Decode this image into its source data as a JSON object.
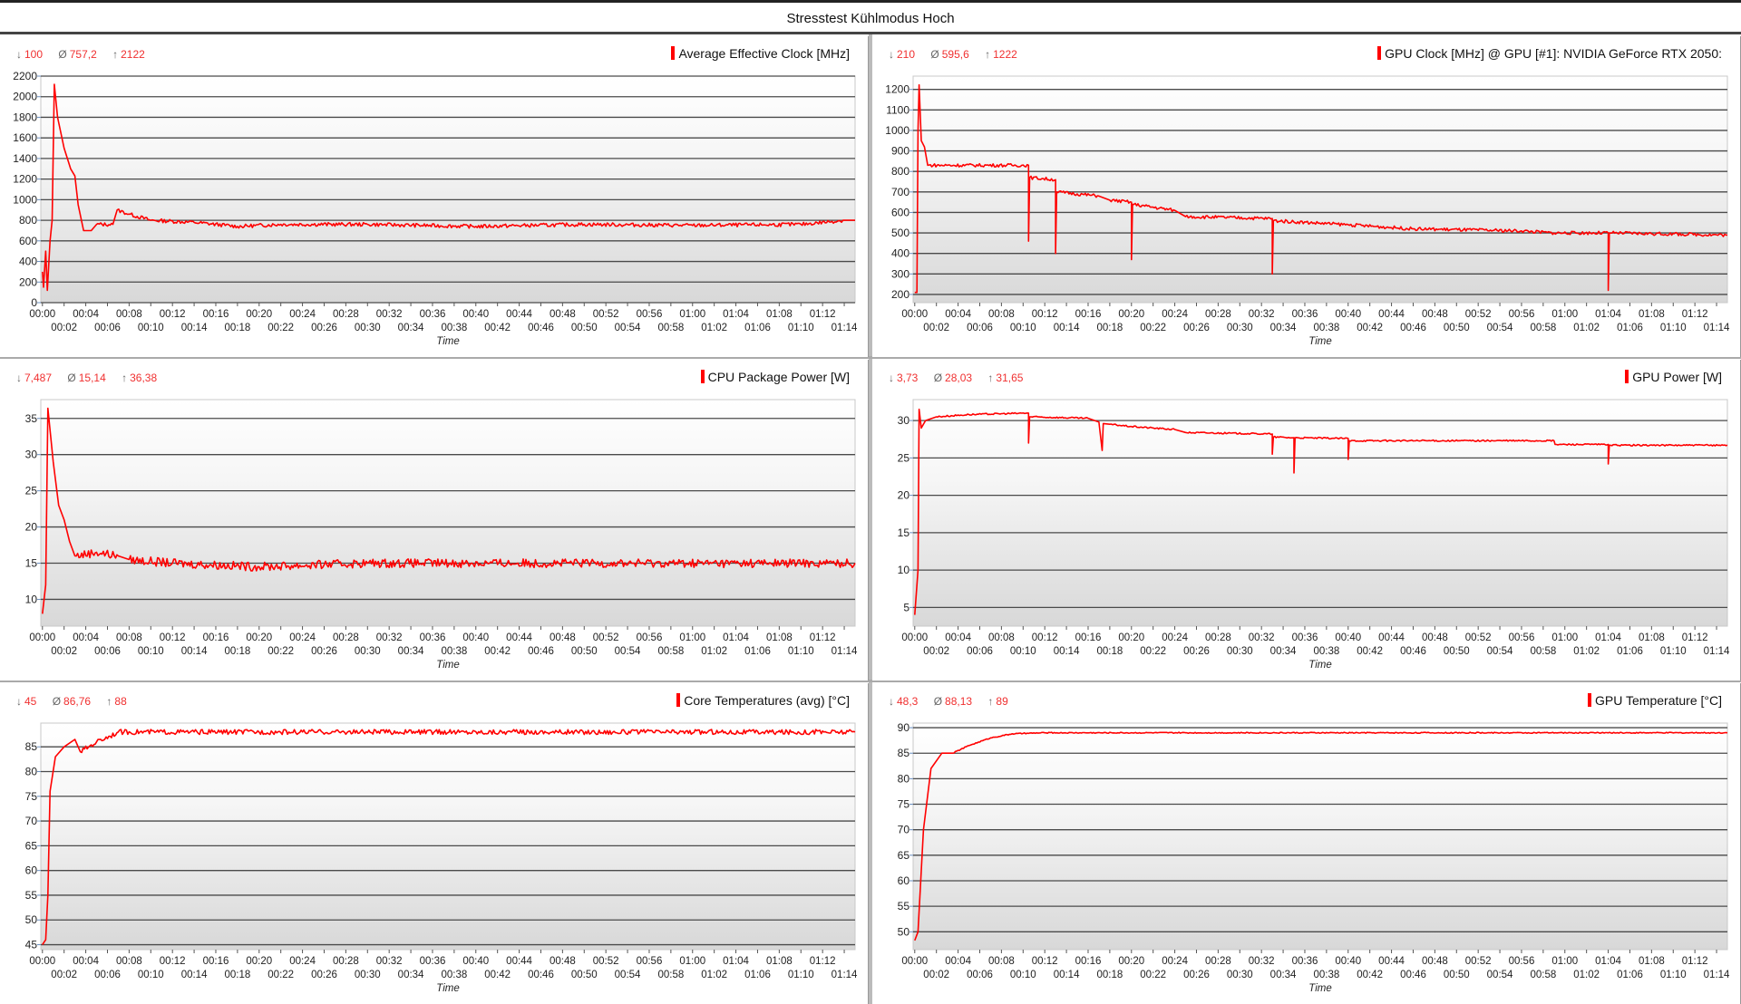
{
  "window_title": "Stresstest Kühlmodus Hoch",
  "colors": {
    "series": "#ff0000",
    "stats": "#f03030"
  },
  "icons": {
    "min": "arrow-down-icon",
    "avg": "average-icon",
    "max": "arrow-up-icon"
  },
  "chart_data": [
    {
      "type": "line",
      "title": "Average Effective Clock [MHz]",
      "xlabel": "Time",
      "stats": {
        "min": "100",
        "avg": "757,2",
        "max": "2122"
      },
      "ylim": [
        0,
        2200
      ],
      "yticks": [
        0,
        200,
        400,
        600,
        800,
        1000,
        1200,
        1400,
        1600,
        1800,
        2000,
        2200
      ],
      "xlim": [
        -0.15,
        75
      ],
      "noise": 18,
      "grid": true,
      "points": [
        [
          0,
          300
        ],
        [
          0.1,
          150
        ],
        [
          0.3,
          500
        ],
        [
          0.45,
          120
        ],
        [
          0.7,
          600
        ],
        [
          0.9,
          800
        ],
        [
          1.1,
          2120
        ],
        [
          1.4,
          1800
        ],
        [
          2,
          1500
        ],
        [
          2.6,
          1300
        ],
        [
          3,
          1230
        ],
        [
          3.3,
          950
        ],
        [
          3.8,
          700
        ],
        [
          4.5,
          700
        ],
        [
          5,
          760
        ],
        [
          6.5,
          760
        ],
        [
          6.9,
          900
        ],
        [
          8,
          860
        ],
        [
          10,
          800
        ],
        [
          14,
          780
        ],
        [
          18,
          740
        ],
        [
          22,
          760
        ],
        [
          30,
          760
        ],
        [
          40,
          740
        ],
        [
          50,
          760
        ],
        [
          60,
          750
        ],
        [
          70,
          760
        ],
        [
          74,
          800
        ],
        [
          75,
          800
        ]
      ]
    },
    {
      "type": "line",
      "title": "GPU Clock [MHz] @ GPU [#1]: NVIDIA GeForce RTX 2050:",
      "xlabel": "Time",
      "stats": {
        "min": "210",
        "avg": "595,6",
        "max": "1222"
      },
      "ylim": [
        160,
        1265
      ],
      "yticks": [
        200,
        300,
        400,
        500,
        600,
        700,
        800,
        900,
        1000,
        1100,
        1200
      ],
      "xlim": [
        -0.15,
        75
      ],
      "noise": 8,
      "grid": true,
      "points": [
        [
          0,
          210
        ],
        [
          0.2,
          210
        ],
        [
          0.3,
          1000
        ],
        [
          0.4,
          1222
        ],
        [
          0.6,
          950
        ],
        [
          0.9,
          920
        ],
        [
          1.2,
          830
        ],
        [
          10.5,
          830
        ],
        [
          10.5,
          460
        ],
        [
          10.6,
          770
        ],
        [
          13,
          760
        ],
        [
          13,
          400
        ],
        [
          13.1,
          700
        ],
        [
          17,
          680
        ],
        [
          18,
          660
        ],
        [
          20,
          650
        ],
        [
          20,
          370
        ],
        [
          20.1,
          640
        ],
        [
          24,
          610
        ],
        [
          25,
          580
        ],
        [
          33,
          570
        ],
        [
          33,
          300
        ],
        [
          33.1,
          560
        ],
        [
          40,
          540
        ],
        [
          46,
          520
        ],
        [
          56,
          510
        ],
        [
          59,
          500
        ],
        [
          64,
          500
        ],
        [
          64,
          220
        ],
        [
          64.1,
          500
        ],
        [
          75,
          490
        ]
      ]
    },
    {
      "type": "line",
      "title": "CPU Package Power [W]",
      "xlabel": "Time",
      "stats": {
        "min": "7,487",
        "avg": "15,14",
        "max": "36,38"
      },
      "ylim": [
        6.3,
        37.6
      ],
      "yticks": [
        10,
        15,
        20,
        25,
        30,
        35
      ],
      "xlim": [
        -0.15,
        75
      ],
      "noise": 0.6,
      "grid": true,
      "points": [
        [
          0,
          8
        ],
        [
          0.3,
          12
        ],
        [
          0.5,
          36.4
        ],
        [
          1,
          29
        ],
        [
          1.5,
          23
        ],
        [
          2,
          21
        ],
        [
          2.5,
          18
        ],
        [
          3,
          16
        ],
        [
          5,
          16.5
        ],
        [
          7,
          16
        ],
        [
          8,
          15.5
        ],
        [
          12,
          15
        ],
        [
          20,
          14.5
        ],
        [
          30,
          15
        ],
        [
          50,
          15
        ],
        [
          75,
          15
        ]
      ]
    },
    {
      "type": "line",
      "title": "GPU Power [W]",
      "xlabel": "Time",
      "stats": {
        "min": "3,73",
        "avg": "28,03",
        "max": "31,65"
      },
      "ylim": [
        2.5,
        32.8
      ],
      "yticks": [
        5,
        10,
        15,
        20,
        25,
        30
      ],
      "xlim": [
        -0.15,
        75
      ],
      "noise": 0.1,
      "grid": true,
      "points": [
        [
          0,
          4
        ],
        [
          0.3,
          10
        ],
        [
          0.4,
          31.5
        ],
        [
          0.6,
          29
        ],
        [
          1,
          30
        ],
        [
          2,
          30.5
        ],
        [
          5,
          30.8
        ],
        [
          10.5,
          31
        ],
        [
          10.5,
          27
        ],
        [
          10.6,
          30.5
        ],
        [
          16,
          30.3
        ],
        [
          17,
          29.8
        ],
        [
          17.3,
          26
        ],
        [
          17.4,
          29.6
        ],
        [
          18,
          29.5
        ],
        [
          20,
          29.2
        ],
        [
          24,
          28.8
        ],
        [
          25,
          28.4
        ],
        [
          33,
          28.2
        ],
        [
          33,
          25.5
        ],
        [
          33.1,
          27.8
        ],
        [
          35,
          27.7
        ],
        [
          35,
          23
        ],
        [
          35.1,
          27.7
        ],
        [
          40,
          27.6
        ],
        [
          40,
          24.8
        ],
        [
          40.1,
          27.3
        ],
        [
          59,
          27.3
        ],
        [
          59.1,
          26.8
        ],
        [
          64,
          26.8
        ],
        [
          64,
          24.2
        ],
        [
          64.1,
          26.7
        ],
        [
          75,
          26.7
        ]
      ]
    },
    {
      "type": "line",
      "title": "Core Temperatures (avg) [°C]",
      "xlabel": "Time",
      "stats": {
        "min": "45",
        "avg": "86,76",
        "max": "88"
      },
      "ylim": [
        44,
        89.8
      ],
      "yticks": [
        45,
        50,
        55,
        60,
        65,
        70,
        75,
        80,
        85
      ],
      "xlim": [
        -0.15,
        75
      ],
      "noise": 0.5,
      "grid": true,
      "points": [
        [
          0,
          45
        ],
        [
          0.3,
          46
        ],
        [
          0.5,
          55
        ],
        [
          0.7,
          76
        ],
        [
          1.2,
          83
        ],
        [
          2,
          85
        ],
        [
          3,
          86.5
        ],
        [
          3.5,
          84
        ],
        [
          5,
          86
        ],
        [
          7,
          88
        ],
        [
          75,
          88
        ]
      ]
    },
    {
      "type": "line",
      "title": "GPU Temperature [°C]",
      "xlabel": "Time",
      "stats": {
        "min": "48,3",
        "avg": "88,13",
        "max": "89"
      },
      "ylim": [
        46.5,
        90.9
      ],
      "yticks": [
        50,
        55,
        60,
        65,
        70,
        75,
        80,
        85,
        90
      ],
      "xlim": [
        -0.15,
        75
      ],
      "noise": 0.1,
      "grid": true,
      "points": [
        [
          0,
          48.3
        ],
        [
          0.3,
          50
        ],
        [
          0.8,
          70
        ],
        [
          1.5,
          82
        ],
        [
          2.5,
          85
        ],
        [
          3.5,
          85
        ],
        [
          5,
          86.5
        ],
        [
          7,
          88
        ],
        [
          9,
          88.8
        ],
        [
          12,
          89
        ],
        [
          75,
          89
        ]
      ]
    }
  ],
  "x_ticks": [
    "00:00",
    "00:02",
    "00:04",
    "00:06",
    "00:08",
    "00:10",
    "00:12",
    "00:14",
    "00:16",
    "00:18",
    "00:20",
    "00:22",
    "00:24",
    "00:26",
    "00:28",
    "00:30",
    "00:32",
    "00:34",
    "00:36",
    "00:38",
    "00:40",
    "00:42",
    "00:44",
    "00:46",
    "00:48",
    "00:50",
    "00:52",
    "00:54",
    "00:56",
    "00:58",
    "01:00",
    "01:02",
    "01:04",
    "01:06",
    "01:08",
    "01:10",
    "01:12",
    "01:14"
  ]
}
